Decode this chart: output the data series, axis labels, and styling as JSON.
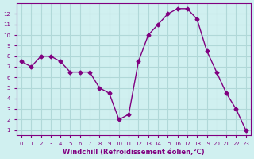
{
  "x": [
    0,
    1,
    2,
    3,
    4,
    5,
    6,
    7,
    8,
    9,
    10,
    11,
    12,
    13,
    14,
    15,
    16,
    17,
    18,
    19,
    20,
    21,
    22,
    23
  ],
  "y": [
    7.5,
    7.0,
    8.0,
    8.0,
    7.5,
    6.5,
    6.5,
    6.5,
    5.0,
    4.5,
    2.0,
    2.5,
    7.5,
    10.0,
    11.0,
    12.0,
    12.5,
    12.5,
    11.5,
    8.5,
    6.5,
    4.5,
    3.0,
    1.0
  ],
  "line_color": "#800080",
  "marker_color": "#800080",
  "bg_color": "#d0f0f0",
  "grid_color": "#b0d8d8",
  "axis_label_color": "#800080",
  "tick_color": "#800080",
  "xlabel": "Windchill (Refroidissement éolien,°C)",
  "xlim": [
    -0.5,
    23.5
  ],
  "ylim": [
    0.5,
    13
  ],
  "yticks": [
    1,
    2,
    3,
    4,
    5,
    6,
    7,
    8,
    9,
    10,
    11,
    12
  ],
  "xticks": [
    0,
    1,
    2,
    3,
    4,
    5,
    6,
    7,
    8,
    9,
    10,
    11,
    12,
    13,
    14,
    15,
    16,
    17,
    18,
    19,
    20,
    21,
    22,
    23
  ]
}
